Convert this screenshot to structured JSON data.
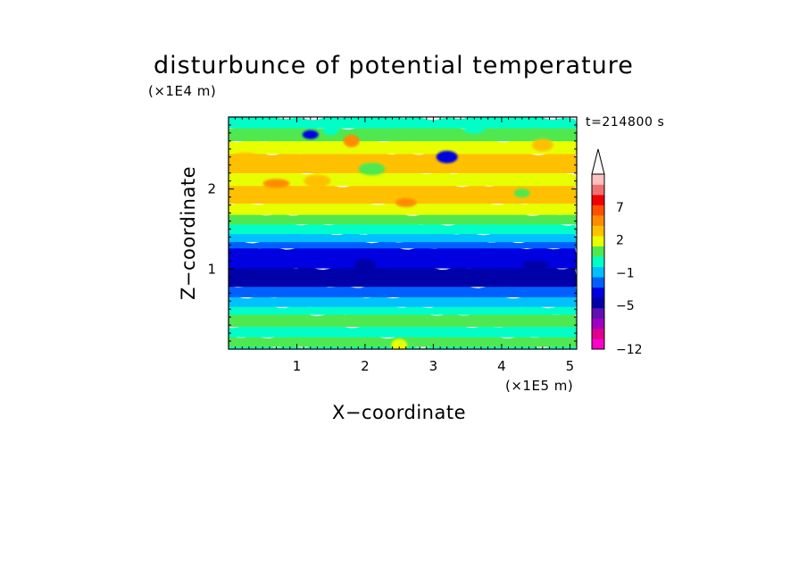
{
  "chart_data": {
    "type": "heatmap",
    "title": "disturbunce of potential temperature",
    "xlabel": "X−coordinate",
    "ylabel": "Z−coordinate",
    "x_scale_label": "(×1E5 m)",
    "y_scale_label": "(×1E4 m)",
    "time_label": "t=214800 s",
    "xlim": [
      0,
      5.1
    ],
    "ylim": [
      0,
      2.9
    ],
    "x_ticks": [
      1,
      2,
      3,
      4,
      5
    ],
    "y_ticks": [
      1,
      2
    ],
    "colorbar": {
      "levels": [
        -12,
        -11,
        -9,
        -7,
        -5,
        -4,
        -3,
        -1,
        0,
        1,
        2,
        3,
        5,
        7,
        9,
        11
      ],
      "labels": [
        "7",
        "2",
        "−1",
        "−5",
        "−12"
      ],
      "label_values": [
        7,
        2,
        -1,
        -5,
        -12
      ],
      "colors": [
        "#ff00c8",
        "#e00090",
        "#a000c0",
        "#6010b0",
        "#0000a8",
        "#0000e0",
        "#0060ff",
        "#00c0ff",
        "#00ffc8",
        "#50e850",
        "#e8ff00",
        "#ffc000",
        "#ff8c00",
        "#ff5000",
        "#f00000",
        "#f07070",
        "#ffc0c0"
      ],
      "extend": "both"
    },
    "layers": [
      {
        "z_range": [
          0.0,
          0.05
        ],
        "value": -0.5,
        "color": "#00ffc8"
      },
      {
        "z_range": [
          0.05,
          0.17
        ],
        "value": 0.3,
        "color": "#50e850"
      },
      {
        "z_range": [
          0.17,
          0.3
        ],
        "value": -0.5,
        "color": "#00ffc8"
      },
      {
        "z_range": [
          0.3,
          0.45
        ],
        "value": 0.5,
        "color": "#50e850"
      },
      {
        "z_range": [
          0.45,
          0.55
        ],
        "value": -0.5,
        "color": "#00ffc8"
      },
      {
        "z_range": [
          0.55,
          0.67
        ],
        "value": -1.5,
        "color": "#00c0ff"
      },
      {
        "z_range": [
          0.67,
          0.8
        ],
        "value": -3.5,
        "color": "#0060ff"
      },
      {
        "z_range": [
          0.8,
          1.03
        ],
        "value": -5,
        "color": "#0000a8"
      },
      {
        "z_range": [
          1.03,
          1.28
        ],
        "value": -4.5,
        "color": "#0000e0"
      },
      {
        "z_range": [
          1.28,
          1.36
        ],
        "value": -3.5,
        "color": "#0060ff"
      },
      {
        "z_range": [
          1.36,
          1.46
        ],
        "value": -1.5,
        "color": "#00c0ff"
      },
      {
        "z_range": [
          1.46,
          1.58
        ],
        "value": -0.5,
        "color": "#00ffc8"
      },
      {
        "z_range": [
          1.58,
          1.7
        ],
        "value": 0.5,
        "color": "#50e850"
      },
      {
        "z_range": [
          1.7,
          1.84
        ],
        "value": 1.5,
        "color": "#e8ff00"
      },
      {
        "z_range": [
          1.84,
          2.06
        ],
        "value": 2.5,
        "color": "#ffc000"
      },
      {
        "z_range": [
          2.06,
          2.22
        ],
        "value": 1.5,
        "color": "#e8ff00"
      },
      {
        "z_range": [
          2.22,
          2.46
        ],
        "value": 2.5,
        "color": "#ffc000"
      },
      {
        "z_range": [
          2.46,
          2.62
        ],
        "value": 1.5,
        "color": "#e8ff00"
      },
      {
        "z_range": [
          2.62,
          2.78
        ],
        "value": 0.5,
        "color": "#50e850"
      },
      {
        "z_range": [
          2.78,
          2.9
        ],
        "value": -0.5,
        "color": "#00ffc8"
      }
    ],
    "features": [
      {
        "x": 1.2,
        "z": 2.68,
        "value": -4.5,
        "color": "#0000e0"
      },
      {
        "x": 3.2,
        "z": 2.4,
        "value": -4.5,
        "color": "#0000e0"
      },
      {
        "x": 0.7,
        "z": 2.07,
        "value": 4,
        "color": "#ff8c00"
      },
      {
        "x": 1.8,
        "z": 2.6,
        "value": 4,
        "color": "#ff8c00"
      },
      {
        "x": 2.6,
        "z": 1.83,
        "value": 4,
        "color": "#ff8c00"
      },
      {
        "x": 1.3,
        "z": 2.1,
        "value": 3,
        "color": "#ffc000"
      },
      {
        "x": 2.3,
        "z": 2.35,
        "value": 3,
        "color": "#ffc000"
      },
      {
        "x": 4.6,
        "z": 2.55,
        "value": 3,
        "color": "#ffc000"
      },
      {
        "x": 0.25,
        "z": 2.4,
        "value": 3,
        "color": "#ffc000"
      },
      {
        "x": 1.5,
        "z": 2.75,
        "value": -0.5,
        "color": "#00ffc8"
      },
      {
        "x": 3.6,
        "z": 2.75,
        "value": -0.5,
        "color": "#00ffc8"
      },
      {
        "x": 2.1,
        "z": 2.25,
        "value": 0.5,
        "color": "#50e850"
      },
      {
        "x": 4.3,
        "z": 1.95,
        "value": 0.5,
        "color": "#50e850"
      },
      {
        "x": 2.0,
        "z": 1.05,
        "value": -5.5,
        "color": "#0000a8"
      },
      {
        "x": 4.5,
        "z": 1.05,
        "value": -5.5,
        "color": "#0000a8"
      },
      {
        "x": 2.5,
        "z": 0.05,
        "value": 1.5,
        "color": "#e8ff00"
      }
    ]
  }
}
